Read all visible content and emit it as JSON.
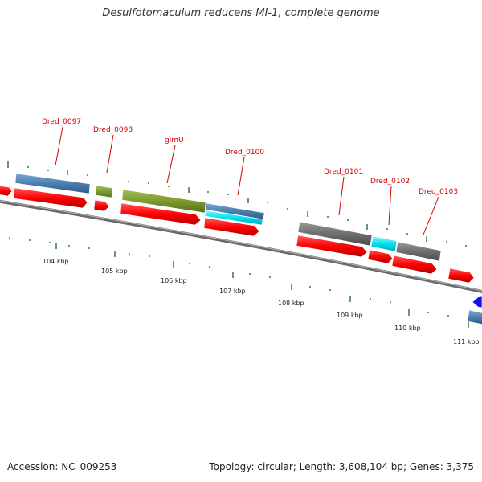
{
  "title": "Desulfotomaculum reducens MI-1, complete genome",
  "footer": {
    "accession": "Accession: NC_009253",
    "summary": "Topology: circular; Length: 3,608,104 bp; Genes: 3,375"
  },
  "colors": {
    "cds": "#ff0000",
    "steelblue": "#4a7fb0",
    "olive": "#7d9a30",
    "gray": "#6e6e6e",
    "cyan": "#00e0f0",
    "blue": "#0000ff",
    "backbone": "#808080",
    "tick": "#2e7d2e",
    "label_line": "#d40000"
  },
  "gene_labels": [
    "Dred_0097",
    "Dred_0098",
    "glmU",
    "Dred_0100",
    "Dred_0101",
    "Dred_0102",
    "Dred_0103"
  ],
  "kbp_labels": [
    "104 kbp",
    "105 kbp",
    "106 kbp",
    "107 kbp",
    "108 kbp",
    "109 kbp",
    "110 kbp",
    "111 kbp"
  ]
}
